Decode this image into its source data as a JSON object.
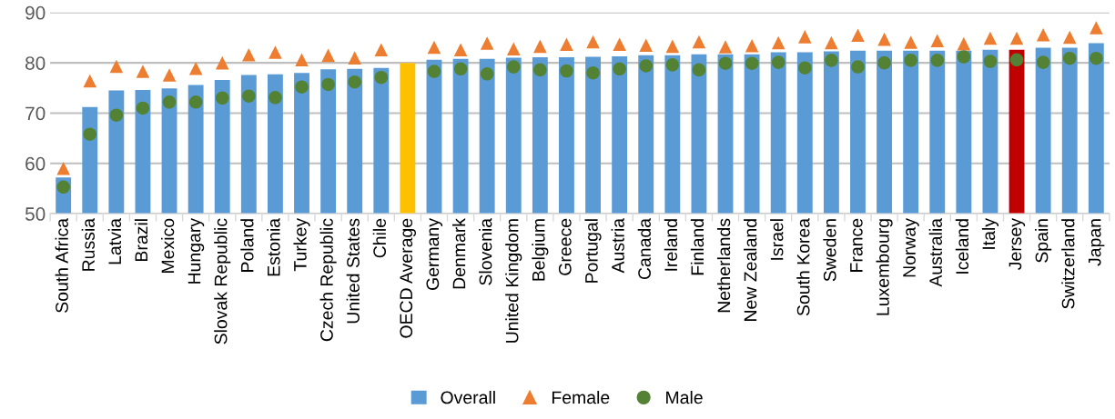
{
  "chart_data": {
    "type": "bar",
    "categories": [
      "South Africa",
      "Russia",
      "Latvia",
      "Brazil",
      "Mexico",
      "Hungary",
      "Slovak Republic",
      "Poland",
      "Estonia",
      "Turkey",
      "Czech Republic",
      "United States",
      "Chile",
      "OECD Average",
      "Germany",
      "Denmark",
      "Slovenia",
      "United Kingdom",
      "Belgium",
      "Greece",
      "Portugal",
      "Austria",
      "Canada",
      "Ireland",
      "Finland",
      "Netherlands",
      "New Zealand",
      "Israel",
      "South Korea",
      "Sweden",
      "France",
      "Luxembourg",
      "Norway",
      "Australia",
      "Iceland",
      "Italy",
      "Jersey",
      "Spain",
      "Switzerland",
      "Japan"
    ],
    "series": [
      {
        "name": "Overall",
        "color": "#5b9bd5",
        "colors": [
          "#5b9bd5",
          "#5b9bd5",
          "#5b9bd5",
          "#5b9bd5",
          "#5b9bd5",
          "#5b9bd5",
          "#5b9bd5",
          "#5b9bd5",
          "#5b9bd5",
          "#5b9bd5",
          "#5b9bd5",
          "#5b9bd5",
          "#5b9bd5",
          "#ffc000",
          "#5b9bd5",
          "#5b9bd5",
          "#5b9bd5",
          "#5b9bd5",
          "#5b9bd5",
          "#5b9bd5",
          "#5b9bd5",
          "#5b9bd5",
          "#5b9bd5",
          "#5b9bd5",
          "#5b9bd5",
          "#5b9bd5",
          "#5b9bd5",
          "#5b9bd5",
          "#5b9bd5",
          "#5b9bd5",
          "#5b9bd5",
          "#5b9bd5",
          "#5b9bd5",
          "#5b9bd5",
          "#5b9bd5",
          "#5b9bd5",
          "#c00000",
          "#5b9bd5",
          "#5b9bd5",
          "#5b9bd5"
        ],
        "values": [
          57.2,
          71.2,
          74.5,
          74.6,
          74.9,
          75.6,
          76.6,
          77.6,
          77.7,
          78.0,
          78.7,
          78.8,
          79.0,
          80.0,
          80.6,
          80.8,
          80.8,
          81.0,
          81.1,
          81.1,
          81.2,
          81.3,
          81.5,
          81.5,
          81.7,
          81.7,
          81.7,
          82.1,
          82.1,
          82.3,
          82.4,
          82.4,
          82.4,
          82.4,
          82.4,
          82.6,
          82.6,
          83.0,
          83.0,
          83.9
        ]
      },
      {
        "name": "Female",
        "type": "scatter",
        "marker": "triangle",
        "color": "#ed7d31",
        "values": [
          59.0,
          76.4,
          79.3,
          78.3,
          77.6,
          78.9,
          80.0,
          81.6,
          82.1,
          80.6,
          81.5,
          81.0,
          82.6,
          null,
          83.1,
          82.6,
          83.9,
          82.8,
          83.3,
          83.7,
          84.2,
          83.7,
          83.5,
          83.3,
          84.2,
          83.2,
          83.4,
          84.0,
          85.2,
          84.0,
          85.5,
          84.7,
          84.1,
          84.4,
          83.8,
          84.9,
          84.9,
          85.6,
          85.1,
          87.0
        ]
      },
      {
        "name": "Male",
        "type": "scatter",
        "marker": "circle",
        "color": "#548235",
        "values": [
          55.3,
          65.8,
          69.6,
          71.0,
          72.2,
          72.2,
          73.0,
          73.4,
          73.1,
          75.2,
          75.7,
          76.2,
          77.1,
          null,
          78.3,
          78.8,
          77.8,
          79.2,
          78.6,
          78.4,
          78.0,
          78.8,
          79.4,
          79.6,
          78.6,
          79.9,
          79.9,
          80.1,
          79.0,
          80.5,
          79.2,
          80.0,
          80.5,
          80.5,
          81.2,
          80.3,
          80.6,
          80.1,
          80.9,
          80.9
        ]
      }
    ],
    "ylim": [
      50,
      90
    ],
    "yticks": [
      50,
      60,
      70,
      80,
      90
    ],
    "grid": "y",
    "legend": "bottom"
  }
}
